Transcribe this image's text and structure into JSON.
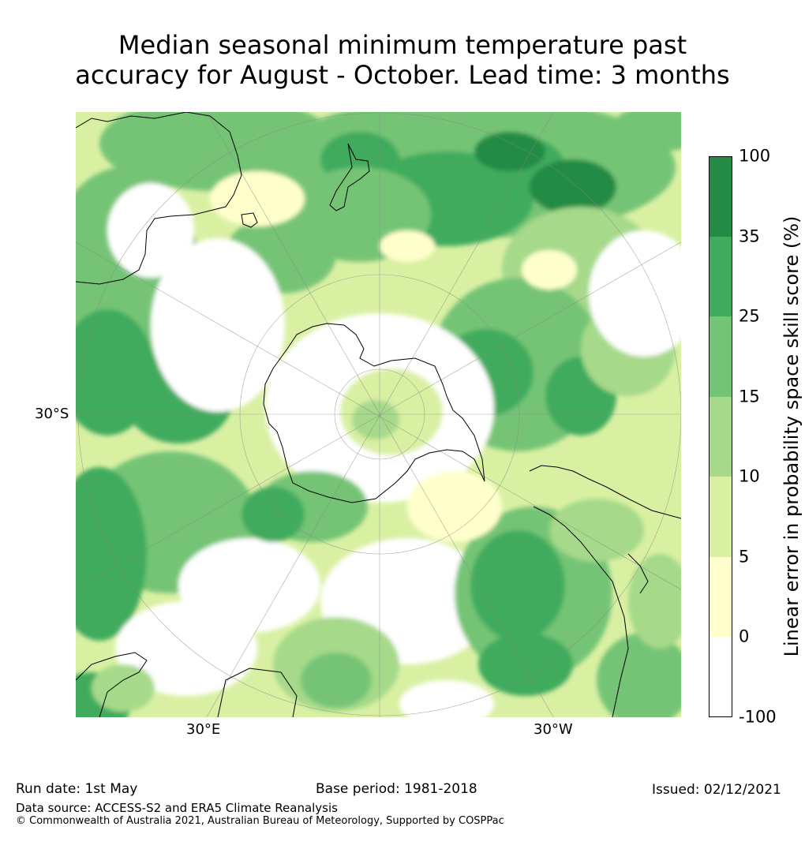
{
  "title": {
    "line1": "Median seasonal minimum temperature past",
    "line2": "accuracy for August - October. Lead time: 3 months"
  },
  "map": {
    "projection": "south-polar stereographic",
    "axis_labels": {
      "left": "30°S",
      "bottom_left": "30°E",
      "bottom_right": "30°W"
    }
  },
  "colorbar": {
    "title": "Linear error in probability space skill score (%)",
    "ticks": [
      "100",
      "35",
      "25",
      "15",
      "10",
      "5",
      "0",
      "-100"
    ],
    "bins": [
      {
        "range": "35 to 100",
        "color": "#238b45"
      },
      {
        "range": "25 to 35",
        "color": "#41ab5d"
      },
      {
        "range": "15 to 25",
        "color": "#74c476"
      },
      {
        "range": "10 to 15",
        "color": "#a6d98a"
      },
      {
        "range": "5 to 10",
        "color": "#d9f0a3"
      },
      {
        "range": "0 to 5",
        "color": "#ffffcc"
      },
      {
        "range": "-100 to 0",
        "color": "#ffffff"
      }
    ]
  },
  "footer": {
    "run_date": "Run date: 1st May",
    "base_period": "Base period: 1981-2018",
    "issued": "Issued: 02/12/2021",
    "data_source": "Data source: ACCESS-S2 and ERA5 Climate Reanalysis",
    "copyright": "© Commonwealth of Australia 2021, Australian Bureau of Meteorology, Supported by COSPPac"
  }
}
